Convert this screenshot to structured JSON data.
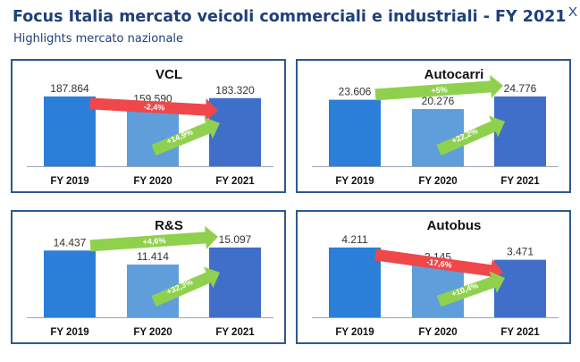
{
  "header": {
    "title": "Focus Italia mercato veicoli commerciali e industriali - FY 2021",
    "subtitle": "Highlights mercato nazionale",
    "corner_glyph": "X"
  },
  "colors": {
    "bar_2019": "#2b7fd8",
    "bar_2020": "#5f9edb",
    "bar_2021": "#3f6fc8",
    "arrow_up": "#8fd14f",
    "arrow_down": "#f0474a",
    "border": "#2c5a8f",
    "title": "#1f3f7a"
  },
  "chart_data": [
    {
      "type": "bar",
      "title": "VCL",
      "categories": [
        "FY 2019",
        "FY 2020",
        "FY 2021"
      ],
      "values": [
        187864,
        159590,
        183320
      ],
      "value_labels": [
        "187.864",
        "159.590",
        "183.320"
      ],
      "annotations": [
        {
          "label": "-2,4%",
          "from": "FY 2019",
          "to": "FY 2021",
          "direction": "down"
        },
        {
          "label": "+14,9%",
          "from": "FY 2020",
          "to": "FY 2021",
          "direction": "up"
        }
      ]
    },
    {
      "type": "bar",
      "title": "Autocarri",
      "categories": [
        "FY 2019",
        "FY 2020",
        "FY 2021"
      ],
      "values": [
        23606,
        20276,
        24776
      ],
      "value_labels": [
        "23.606",
        "20.276",
        "24.776"
      ],
      "annotations": [
        {
          "label": "+5%",
          "from": "FY 2019",
          "to": "FY 2021",
          "direction": "up"
        },
        {
          "label": "+22,2%",
          "from": "FY 2020",
          "to": "FY 2021",
          "direction": "up"
        }
      ]
    },
    {
      "type": "bar",
      "title": "R&S",
      "categories": [
        "FY 2019",
        "FY 2020",
        "FY 2021"
      ],
      "values": [
        14437,
        11414,
        15097
      ],
      "value_labels": [
        "14.437",
        "11.414",
        "15.097"
      ],
      "annotations": [
        {
          "label": "+4,6%",
          "from": "FY 2019",
          "to": "FY 2021",
          "direction": "up"
        },
        {
          "label": "+32,3%",
          "from": "FY 2020",
          "to": "FY 2021",
          "direction": "up"
        }
      ]
    },
    {
      "type": "bar",
      "title": "Autobus",
      "categories": [
        "FY 2019",
        "FY 2020",
        "FY 2021"
      ],
      "values": [
        4211,
        3145,
        3471
      ],
      "value_labels": [
        "4.211",
        "3.145",
        "3.471"
      ],
      "annotations": [
        {
          "label": "-17,6%",
          "from": "FY 2019",
          "to": "FY 2021",
          "direction": "down"
        },
        {
          "label": "+10,4%",
          "from": "FY 2020",
          "to": "FY 2021",
          "direction": "up"
        }
      ]
    }
  ]
}
